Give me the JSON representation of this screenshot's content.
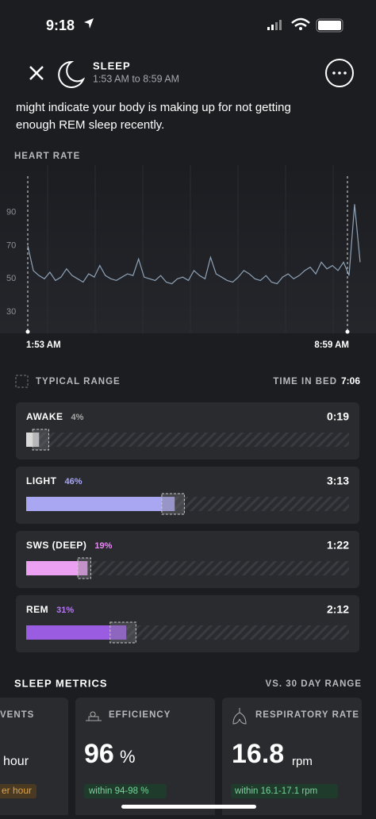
{
  "status_bar": {
    "time": "9:18"
  },
  "header": {
    "title": "SLEEP",
    "subtitle": "1:53 AM to 8:59 AM"
  },
  "intro": {
    "lines": [
      "might indicate your body is making up for not getting",
      "enough REM sleep recently."
    ]
  },
  "heart_rate": {
    "type": "line",
    "title": "HEART RATE",
    "color": "#8fa3b8",
    "values": [
      70,
      55,
      52,
      50,
      54,
      49,
      51,
      56,
      52,
      50,
      48,
      53,
      51,
      58,
      52,
      50,
      49,
      51,
      53,
      52,
      62,
      51,
      50,
      49,
      52,
      48,
      47,
      50,
      51,
      49,
      55,
      52,
      50,
      63,
      53,
      51,
      49,
      48,
      51,
      55,
      53,
      50,
      49,
      52,
      48,
      47,
      51,
      53,
      50,
      52,
      55,
      57,
      53,
      60,
      56,
      58,
      55,
      60,
      52,
      95,
      60
    ],
    "x_labels": [
      "1:53 AM",
      "8:59 AM"
    ],
    "ylim": [
      20,
      110
    ],
    "yticks": [
      30,
      50,
      70,
      90
    ]
  },
  "stages_header": {
    "legend": "TYPICAL RANGE",
    "time_in_bed_label": "TIME IN BED",
    "time_in_bed": "7:06"
  },
  "stages": [
    {
      "name": "AWAKE",
      "value": 4,
      "value_label": "4%",
      "duration": "0:19",
      "color": "#d9d9d9",
      "label_color": "#a9a9a9",
      "typical": [
        2,
        7
      ]
    },
    {
      "name": "LIGHT",
      "value": 46,
      "value_label": "46%",
      "duration": "3:13",
      "color": "#a9a7f2",
      "label_color": "#a9a7f2",
      "typical": [
        42,
        49
      ]
    },
    {
      "name": "SWS (DEEP)",
      "value": 19,
      "value_label": "19%",
      "duration": "1:22",
      "color": "#eba0f2",
      "label_color": "#e58bf0",
      "typical": [
        16,
        20
      ]
    },
    {
      "name": "REM",
      "value": 31,
      "value_label": "31%",
      "duration": "2:12",
      "color": "#9a5de2",
      "label_color": "#b577f5",
      "typical": [
        26,
        34
      ]
    }
  ],
  "metrics": {
    "title": "SLEEP METRICS",
    "range_label": "VS. 30 DAY RANGE",
    "cards": [
      {
        "title": "VENTS",
        "value": "hour",
        "note": "er hour"
      },
      {
        "title": "EFFICIENCY",
        "value": "96",
        "unit": "%",
        "note": "within 94-98 %"
      },
      {
        "title": "RESPIRATORY RATE",
        "value": "16.8",
        "unit": "rpm",
        "note": "within 16.1-17.1 rpm"
      }
    ]
  }
}
